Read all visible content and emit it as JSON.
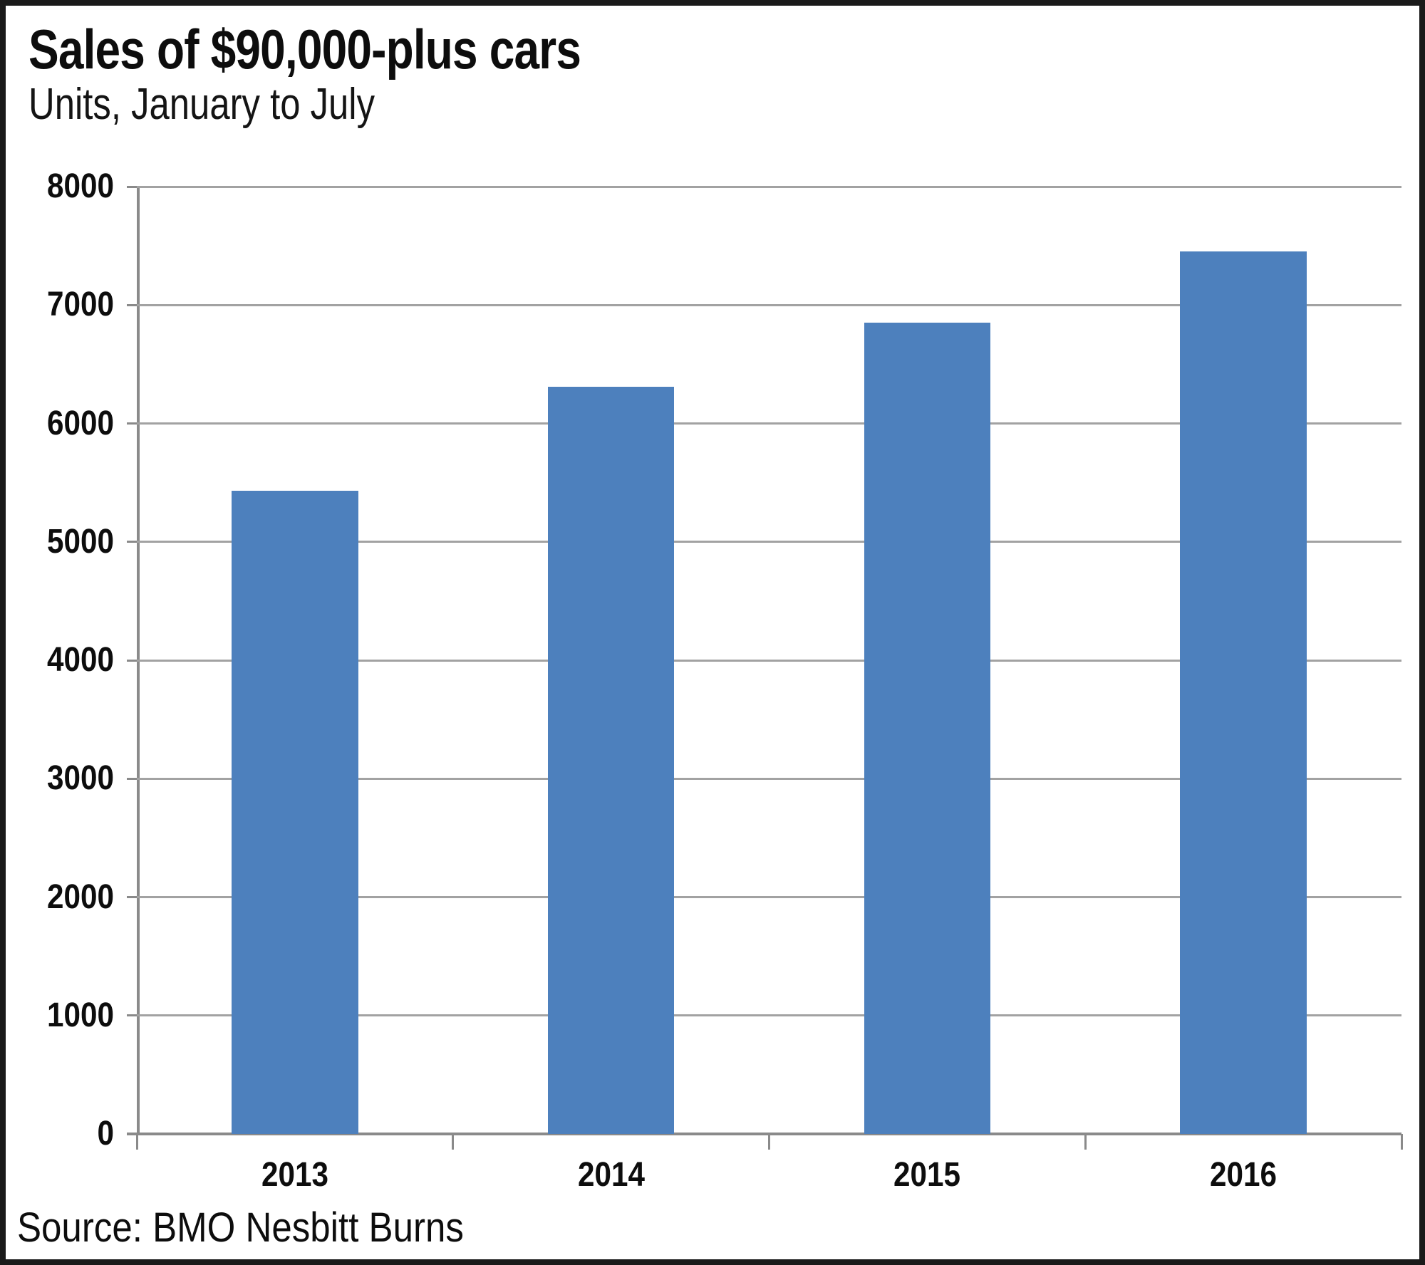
{
  "header": {
    "title": "Sales of $90,000-plus cars",
    "subtitle": "Units, January to July"
  },
  "footer": {
    "source": "Source: BMO Nesbitt Burns"
  },
  "colors": {
    "bar": "#4d80bd",
    "gridline": "#a2a2a2",
    "axis": "#8a8a8a",
    "frame": "#1a1a1a",
    "text": "#0d0d0d"
  },
  "chart_data": {
    "type": "bar",
    "title": "Sales of $90,000-plus cars",
    "subtitle": "Units, January to July",
    "categories": [
      "2013",
      "2014",
      "2015",
      "2016"
    ],
    "values": [
      5430,
      6310,
      6850,
      7450
    ],
    "xlabel": "",
    "ylabel": "",
    "ylim": [
      0,
      8000
    ],
    "ytick_step": 1000,
    "yticks": [
      0,
      1000,
      2000,
      3000,
      4000,
      5000,
      6000,
      7000,
      8000
    ],
    "grid": true,
    "legend": false,
    "bar_color": "#4d80bd",
    "source": "Source: BMO Nesbitt Burns"
  }
}
